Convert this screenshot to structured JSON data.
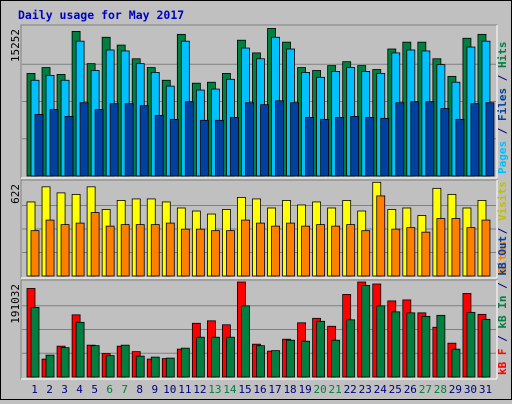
{
  "chart_data": {
    "type": "bar",
    "title": "Daily usage for May 2017",
    "categories": [
      "1",
      "2",
      "3",
      "4",
      "5",
      "6",
      "7",
      "8",
      "9",
      "10",
      "11",
      "12",
      "13",
      "14",
      "15",
      "16",
      "17",
      "18",
      "19",
      "20",
      "21",
      "22",
      "23",
      "24",
      "25",
      "26",
      "27",
      "28",
      "29",
      "30",
      "31"
    ],
    "weekend_days": [
      "6",
      "7",
      "13",
      "14",
      "20",
      "21",
      "27",
      "28"
    ],
    "colors": {
      "hits": "#008040",
      "files": "#00c0ff",
      "pages": "#0040a0",
      "visits": "#ffff00",
      "sites": "#ff8000",
      "kb_f": "#ff0000",
      "kb_in": "#008040",
      "kb_out": "#0040a0",
      "weekend_label": "#008040",
      "weekday_label": "#000080",
      "title": "#0000c0"
    },
    "panels": [
      {
        "name": "requests",
        "ymax_label": "15252",
        "ylim": [
          0,
          15252
        ],
        "legend": [
          {
            "text": "Pages",
            "color": "#00c0ff"
          },
          {
            "text": " / ",
            "color": "#000080"
          },
          {
            "text": "Files",
            "color": "#0040a0"
          },
          {
            "text": " / ",
            "color": "#000080"
          },
          {
            "text": "Hits",
            "color": "#008040"
          }
        ],
        "series": [
          {
            "name": "Hits",
            "values": [
              10500,
              11100,
              10400,
              14800,
              11500,
              14200,
              13400,
              12000,
              11100,
              9800,
              14500,
              9500,
              9600,
              10500,
              13900,
              12600,
              15100,
              13700,
              11100,
              10800,
              11300,
              11700,
              11300,
              10900,
              13000,
              13700,
              13700,
              12000,
              10200,
              14100,
              14500
            ]
          },
          {
            "name": "Files",
            "values": [
              9800,
              10300,
              9800,
              13800,
              10800,
              12900,
              12800,
              11500,
              10600,
              9200,
              13800,
              8800,
              8900,
              9900,
              13100,
              12000,
              14200,
              13000,
              10600,
              10100,
              10700,
              11100,
              10700,
              10500,
              12600,
              12900,
              12800,
              11400,
              9600,
              13200,
              13800
            ]
          },
          {
            "name": "Pages",
            "values": [
              6300,
              6800,
              6100,
              7500,
              6800,
              7400,
              7400,
              7200,
              6200,
              5800,
              7600,
              5700,
              5700,
              6000,
              7500,
              7300,
              7700,
              7500,
              6000,
              5800,
              6000,
              6100,
              6000,
              5900,
              7500,
              7600,
              7600,
              6900,
              5800,
              7400,
              7500
            ]
          }
        ]
      },
      {
        "name": "visits",
        "ymax_label": "622",
        "ylim": [
          0,
          622
        ],
        "legend": [
          {
            "text": "Sites",
            "color": "#ff8000"
          },
          {
            "text": " / ",
            "color": "#000080"
          },
          {
            "text": "Visits",
            "color": "#c0c000"
          }
        ],
        "series": [
          {
            "name": "Visits",
            "values": [
              490,
              590,
              550,
              540,
              590,
              440,
              500,
              510,
              510,
              490,
              450,
              430,
              410,
              440,
              520,
              510,
              450,
              500,
              470,
              490,
              450,
              500,
              430,
              620,
              440,
              450,
              400,
              580,
              540,
              450,
              500
            ]
          },
          {
            "name": "Sites",
            "values": [
              300,
              370,
              340,
              350,
              420,
              330,
              340,
              340,
              340,
              350,
              310,
              310,
              300,
              300,
              370,
              350,
              330,
              350,
              330,
              340,
              330,
              340,
              300,
              530,
              310,
              320,
              290,
              380,
              380,
              320,
              370
            ]
          }
        ]
      },
      {
        "name": "traffic",
        "ymax_label": "191032",
        "ylim": [
          0,
          191032
        ],
        "legend": [
          {
            "text": "kB F",
            "color": "#ff0000"
          },
          {
            "text": " / ",
            "color": "#000080"
          },
          {
            "text": "kB In",
            "color": "#008040"
          },
          {
            "text": " / ",
            "color": "#000080"
          },
          {
            "text": "kB Out",
            "color": "#0040a0"
          }
        ],
        "series": [
          {
            "name": "kB F",
            "values": [
              178000,
              36000,
              62000,
              125000,
              64000,
              47000,
              62000,
              51000,
              36000,
              37000,
              56000,
              108000,
              113000,
              105000,
              191000,
              66000,
              52000,
              76000,
              109000,
              118000,
              102000,
              166000,
              191000,
              187000,
              153000,
              155000,
              129000,
              100000,
              68000,
              168000,
              126000
            ]
          },
          {
            "name": "kB In",
            "values": [
              140000,
              44000,
              59000,
              110000,
              63000,
              43000,
              64000,
              42000,
              40000,
              38000,
              58000,
              80000,
              80000,
              80000,
              143000,
              63000,
              53000,
              74000,
              72000,
              112000,
              74000,
              115000,
              184000,
              143000,
              131000,
              129000,
              122000,
              124000,
              56000,
              130000,
              116000
            ]
          },
          {
            "name": "kB Out",
            "values": [
              0,
              0,
              0,
              0,
              0,
              0,
              0,
              0,
              0,
              0,
              0,
              0,
              0,
              0,
              0,
              0,
              0,
              0,
              0,
              0,
              0,
              0,
              0,
              0,
              0,
              0,
              0,
              0,
              0,
              0,
              0
            ]
          }
        ]
      }
    ]
  }
}
